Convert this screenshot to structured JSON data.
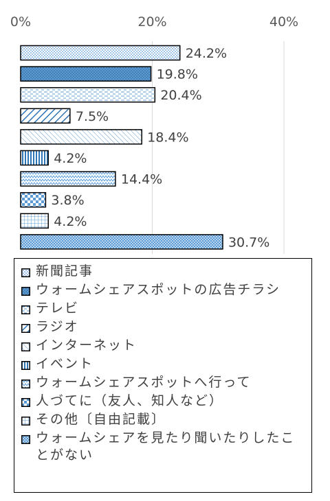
{
  "chart_data": {
    "type": "bar",
    "orientation": "horizontal",
    "xlim": [
      0,
      40
    ],
    "x_ticks": [
      "0%",
      "20%",
      "40%"
    ],
    "x_tick_values": [
      0,
      20,
      40
    ],
    "grid": true,
    "legend_position": "bottom",
    "series": [
      {
        "name": "新聞記事",
        "value": 24.2,
        "label": "24.2%",
        "color": "#d6e6f2"
      },
      {
        "name": "ウォームシェアスポットの広告チラシ",
        "value": 19.8,
        "label": "19.8%",
        "color": "#5b9bd5"
      },
      {
        "name": "テレビ",
        "value": 20.4,
        "label": "20.4%",
        "color": "#ffffff"
      },
      {
        "name": "ラジオ",
        "value": 7.5,
        "label": "7.5%",
        "color": "#ffffff"
      },
      {
        "name": "インターネット",
        "value": 18.4,
        "label": "18.4%",
        "color": "#ffffff"
      },
      {
        "name": "イベント",
        "value": 4.2,
        "label": "4.2%",
        "color": "#ffffff"
      },
      {
        "name": "ウォームシェアスポットへ行って",
        "value": 14.4,
        "label": "14.4%",
        "color": "#ffffff"
      },
      {
        "name": "人づてに（友人、知人など）",
        "value": 3.8,
        "label": "3.8%",
        "color": "#ffffff"
      },
      {
        "name": "その他〔自由記載〕",
        "value": 4.2,
        "label": "4.2%",
        "color": "#ffffff"
      },
      {
        "name": "ウォームシェアを見たり聞いたりしたことがない",
        "value": 30.7,
        "label": "30.7%",
        "color": "#bdd7ee"
      }
    ],
    "patterns": [
      "dots",
      "dense-dots",
      "dashes",
      "diagonal",
      "light-diagonal",
      "vertical",
      "zigzag",
      "checker",
      "grid",
      "fine-checker"
    ]
  }
}
